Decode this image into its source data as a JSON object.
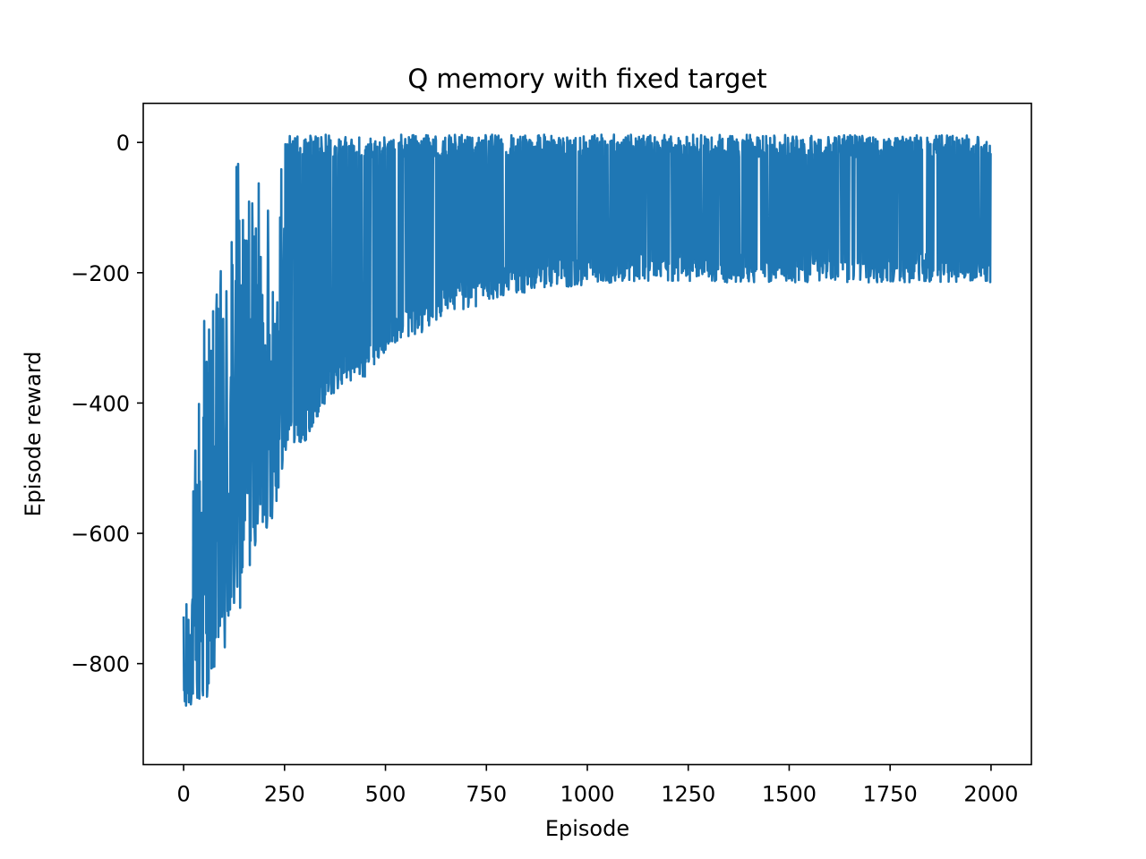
{
  "chart_data": {
    "type": "line",
    "title": "Q memory with fixed target",
    "xlabel": "Episode",
    "ylabel": "Episode reward",
    "xlim": [
      -100,
      2100
    ],
    "ylim": [
      -955,
      60
    ],
    "xticks": [
      0,
      250,
      500,
      750,
      1000,
      1250,
      1500,
      1750,
      2000
    ],
    "yticks": [
      0,
      -200,
      -400,
      -600,
      -800
    ],
    "xtick_labels": [
      "0",
      "250",
      "500",
      "750",
      "1000",
      "1250",
      "1500",
      "1750",
      "2000"
    ],
    "ytick_labels": [
      "0",
      "−200",
      "−400",
      "−600",
      "−800"
    ],
    "grid": false,
    "line_color": "#1f77b4",
    "series": [
      {
        "episodes": 2000,
        "envelope": {
          "x": [
            0,
            10,
            25,
            50,
            75,
            100,
            125,
            150,
            175,
            200,
            225,
            250,
            300,
            350,
            400,
            450,
            500,
            550,
            600,
            650,
            700,
            750,
            800,
            900,
            1000,
            1100,
            1200,
            1300,
            1400,
            1500,
            1600,
            1700,
            1800,
            1900,
            2000
          ],
          "upper": [
            -710,
            -700,
            -500,
            -180,
            -250,
            -150,
            -20,
            -15,
            -30,
            -100,
            -40,
            10,
            10,
            12,
            12,
            12,
            12,
            12,
            12,
            12,
            12,
            12,
            12,
            12,
            12,
            12,
            12,
            12,
            12,
            12,
            12,
            12,
            12,
            12,
            10
          ],
          "lower": [
            -910,
            -870,
            -860,
            -870,
            -810,
            -800,
            -740,
            -700,
            -620,
            -600,
            -570,
            -480,
            -460,
            -400,
            -370,
            -360,
            -320,
            -300,
            -290,
            -260,
            -255,
            -250,
            -235,
            -225,
            -220,
            -215,
            -215,
            -215,
            -215,
            -215,
            -215,
            -215,
            -215,
            -215,
            -215
          ]
        }
      }
    ]
  }
}
